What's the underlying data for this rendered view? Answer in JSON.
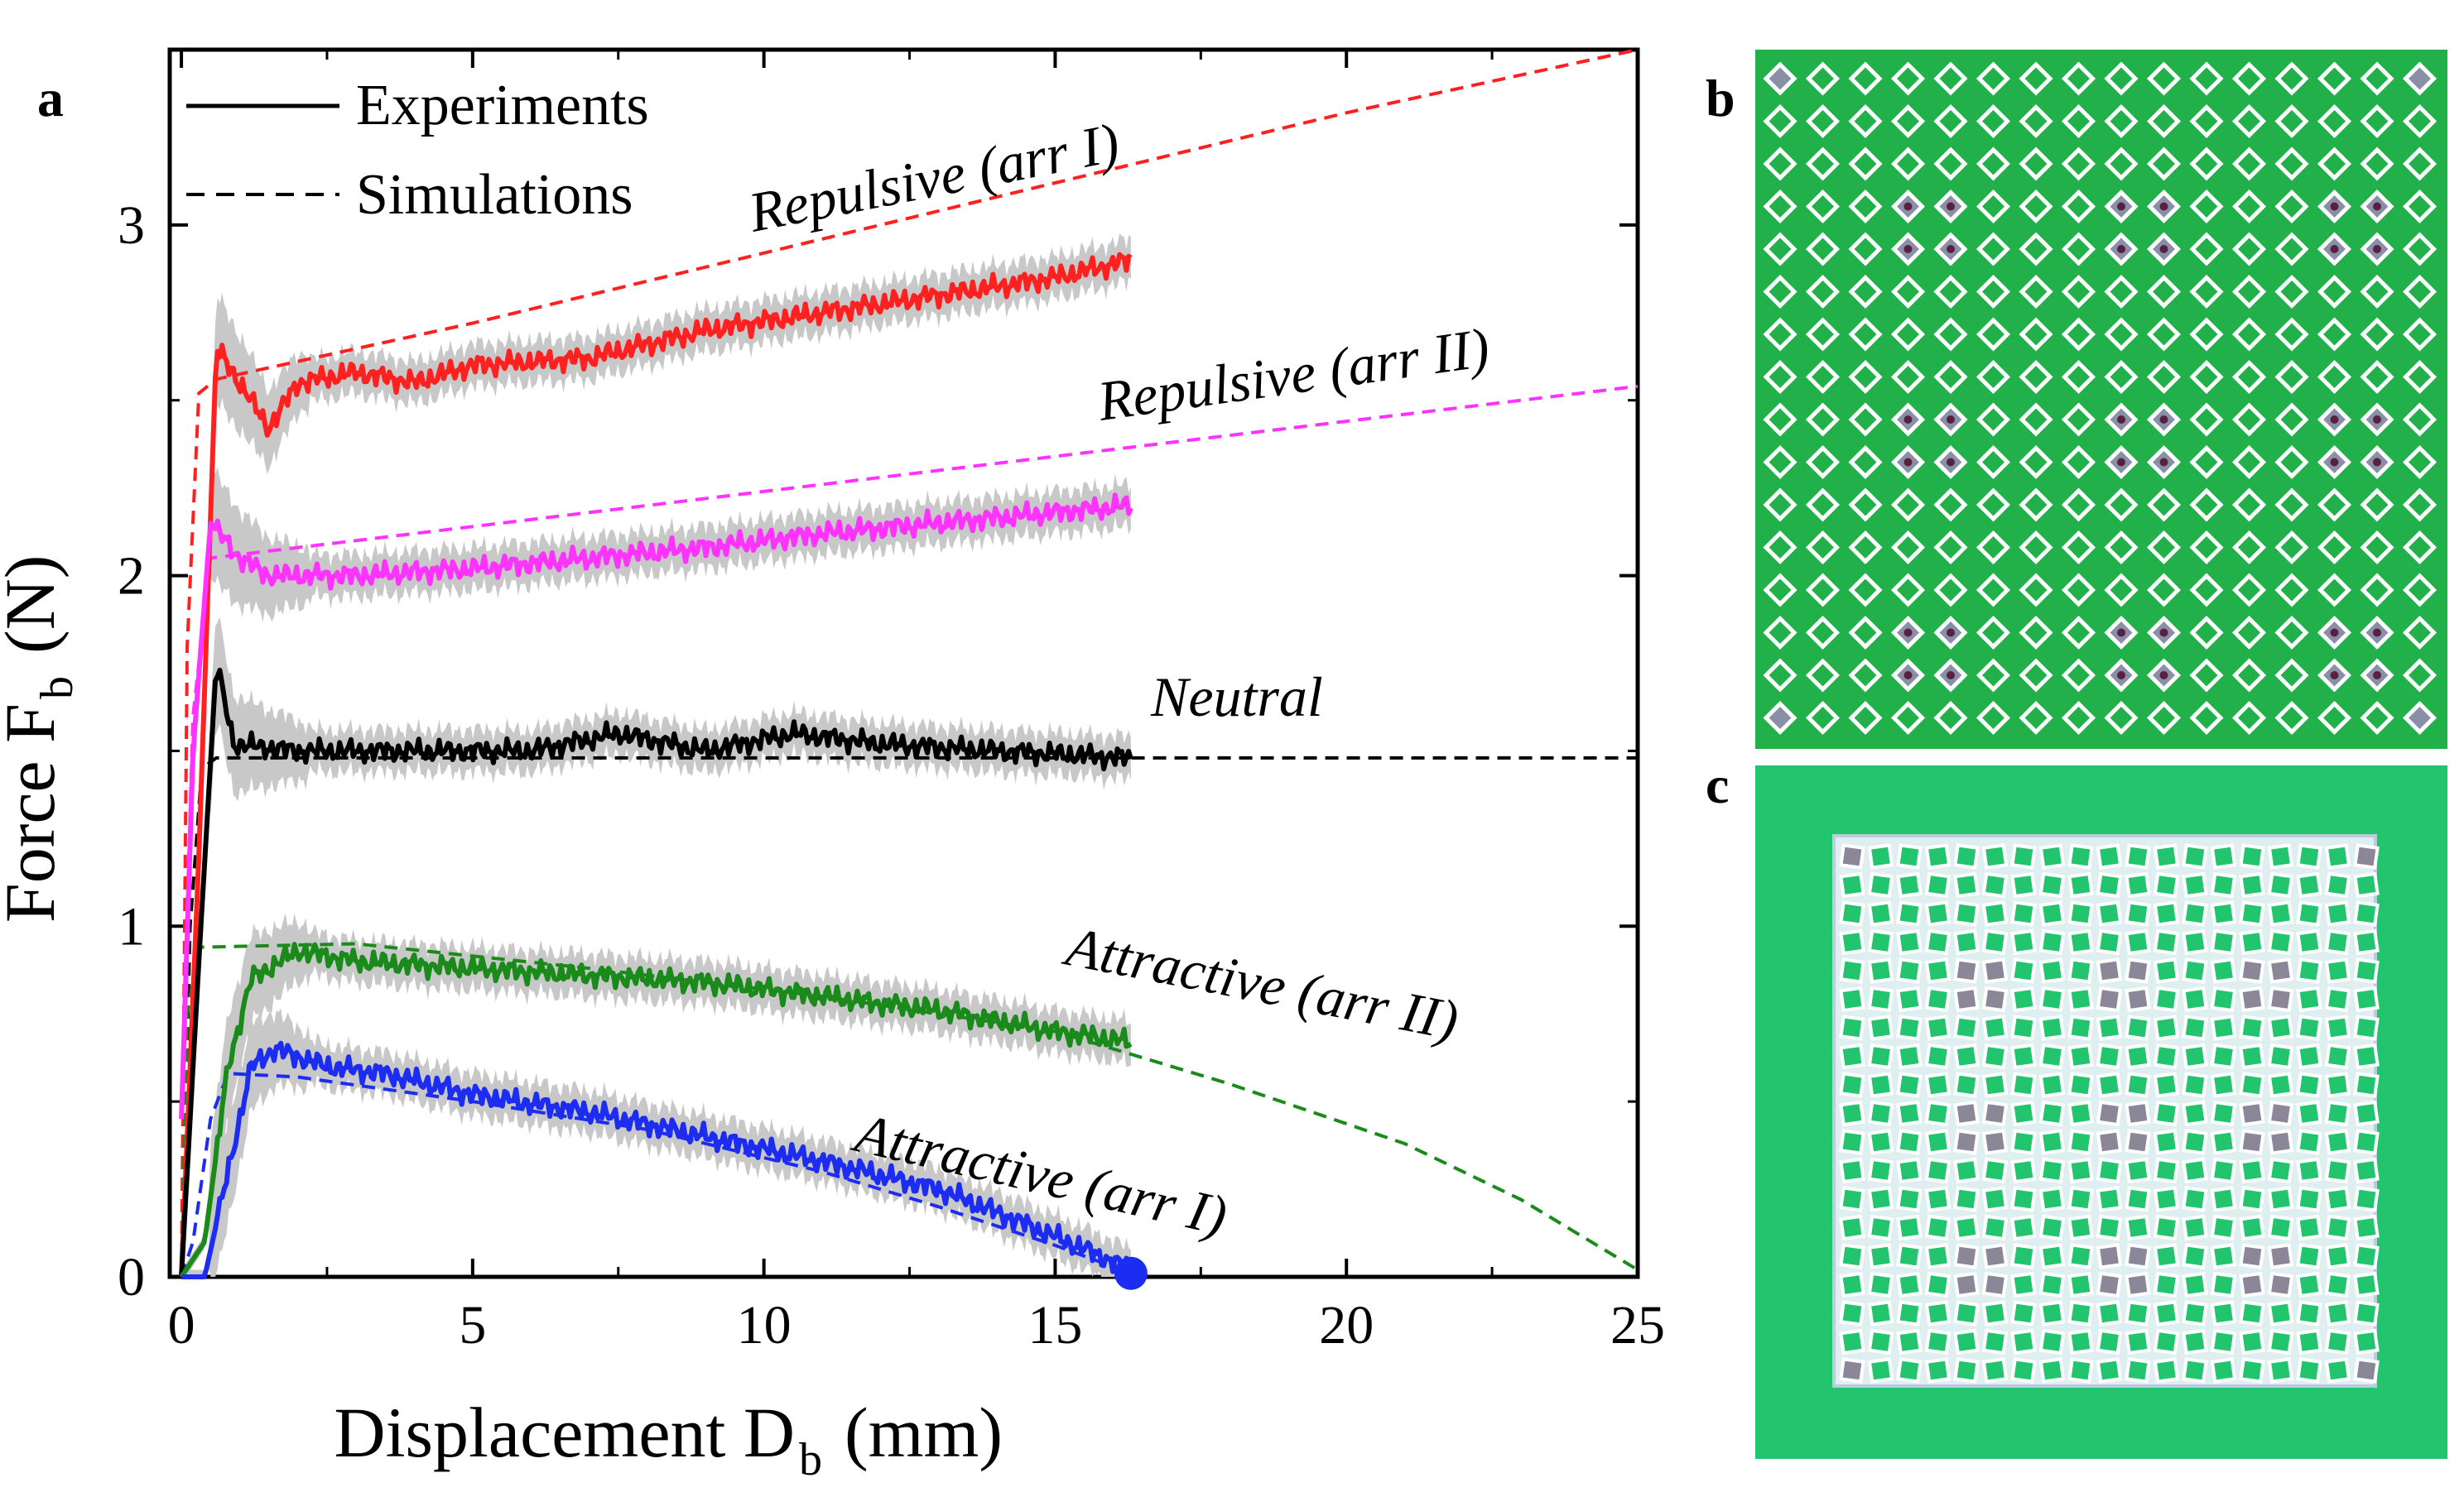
{
  "panels": {
    "a": "a",
    "b": "b",
    "c": "c"
  },
  "legend": {
    "experiments": "Experiments",
    "simulations": "Simulations"
  },
  "colors": {
    "red": "#ff2020",
    "magenta": "#ff33ff",
    "black": "#000000",
    "green": "#1a8a1a",
    "blue": "#1c2cf0",
    "band": "#c8c8c8",
    "board_b": "#22b04a",
    "board_c": "#22c46e"
  },
  "chart_data": {
    "type": "line",
    "xlabel": "Displacement D",
    "xlabel_sub": "b",
    "xlabel_unit": "(mm)",
    "ylabel": "Force F",
    "ylabel_sub": "b",
    "ylabel_unit": "(N)",
    "xlim": [
      -0.2,
      25
    ],
    "ylim": [
      0,
      3.5
    ],
    "xticks": [
      0,
      5,
      10,
      15,
      20,
      25
    ],
    "yticks": [
      0,
      1,
      2,
      3
    ],
    "legend_position": "top-left",
    "series": [
      {
        "name": "Repulsive (arr I)",
        "color": "red",
        "experiment": [
          [
            0,
            0
          ],
          [
            0.3,
            1.2
          ],
          [
            0.6,
            2.65
          ],
          [
            1.0,
            2.55
          ],
          [
            1.5,
            2.42
          ],
          [
            2.0,
            2.55
          ],
          [
            3.0,
            2.58
          ],
          [
            4.0,
            2.55
          ],
          [
            5.0,
            2.6
          ],
          [
            7.0,
            2.62
          ],
          [
            9.0,
            2.7
          ],
          [
            11.0,
            2.75
          ],
          [
            13.0,
            2.8
          ],
          [
            15.0,
            2.85
          ],
          [
            16.3,
            2.9
          ]
        ],
        "simulation": [
          [
            0,
            0
          ],
          [
            0.1,
            1.8
          ],
          [
            0.3,
            2.52
          ],
          [
            0.6,
            2.56
          ],
          [
            5,
            2.72
          ],
          [
            10,
            2.92
          ],
          [
            15,
            3.12
          ],
          [
            20,
            3.32
          ],
          [
            25,
            3.5
          ]
        ]
      },
      {
        "name": "Repulsive (arr II)",
        "color": "magenta",
        "experiment": [
          [
            0,
            0.45
          ],
          [
            0.2,
            1.5
          ],
          [
            0.5,
            2.15
          ],
          [
            1.0,
            2.05
          ],
          [
            1.5,
            2.0
          ],
          [
            3.0,
            2.0
          ],
          [
            5.0,
            2.02
          ],
          [
            7.0,
            2.05
          ],
          [
            9.0,
            2.08
          ],
          [
            11.0,
            2.12
          ],
          [
            13.0,
            2.15
          ],
          [
            15.0,
            2.18
          ],
          [
            16.3,
            2.2
          ]
        ],
        "simulation": [
          [
            0,
            0.5
          ],
          [
            0.2,
            1.6
          ],
          [
            0.5,
            2.05
          ],
          [
            5,
            2.14
          ],
          [
            10,
            2.24
          ],
          [
            15,
            2.34
          ],
          [
            20,
            2.44
          ],
          [
            25,
            2.54
          ]
        ]
      },
      {
        "name": "Neutral",
        "color": "black",
        "experiment": [
          [
            0,
            0
          ],
          [
            0.3,
            0.9
          ],
          [
            0.6,
            1.75
          ],
          [
            0.9,
            1.52
          ],
          [
            2.0,
            1.5
          ],
          [
            4.0,
            1.5
          ],
          [
            6.0,
            1.5
          ],
          [
            7.5,
            1.55
          ],
          [
            9.0,
            1.5
          ],
          [
            10.5,
            1.55
          ],
          [
            12.0,
            1.52
          ],
          [
            14.0,
            1.5
          ],
          [
            16.3,
            1.48
          ]
        ],
        "simulation": [
          [
            0,
            0
          ],
          [
            0.15,
            1.0
          ],
          [
            0.35,
            1.45
          ],
          [
            0.6,
            1.48
          ],
          [
            25,
            1.48
          ]
        ]
      },
      {
        "name": "Attractive (arr II)",
        "color": "green",
        "experiment": [
          [
            0,
            0
          ],
          [
            0.4,
            0.1
          ],
          [
            0.8,
            0.6
          ],
          [
            1.2,
            0.85
          ],
          [
            2.0,
            0.93
          ],
          [
            3.0,
            0.9
          ],
          [
            5.0,
            0.88
          ],
          [
            7.0,
            0.86
          ],
          [
            9.0,
            0.84
          ],
          [
            11.0,
            0.8
          ],
          [
            13.0,
            0.76
          ],
          [
            15.0,
            0.7
          ],
          [
            16.3,
            0.67
          ]
        ],
        "simulation": [
          [
            0,
            0
          ],
          [
            0.1,
            0.75
          ],
          [
            0.3,
            0.94
          ],
          [
            3,
            0.95
          ],
          [
            7,
            0.88
          ],
          [
            11,
            0.8
          ],
          [
            15,
            0.7
          ],
          [
            18,
            0.55
          ],
          [
            21,
            0.38
          ],
          [
            23,
            0.22
          ],
          [
            25,
            0.02
          ]
        ]
      },
      {
        "name": "Attractive (arr I)",
        "color": "blue",
        "experiment": [
          [
            0,
            0
          ],
          [
            0.4,
            0.0
          ],
          [
            0.8,
            0.3
          ],
          [
            1.2,
            0.6
          ],
          [
            1.6,
            0.65
          ],
          [
            2.5,
            0.6
          ],
          [
            3.5,
            0.58
          ],
          [
            5.0,
            0.52
          ],
          [
            7.0,
            0.47
          ],
          [
            9.0,
            0.4
          ],
          [
            11.0,
            0.33
          ],
          [
            13.0,
            0.25
          ],
          [
            14.5,
            0.15
          ],
          [
            15.5,
            0.08
          ],
          [
            16.3,
            0.02
          ]
        ],
        "simulation": [
          [
            0,
            0
          ],
          [
            0.2,
            0.1
          ],
          [
            0.5,
            0.45
          ],
          [
            0.8,
            0.58
          ],
          [
            2,
            0.57
          ],
          [
            5,
            0.5
          ],
          [
            8,
            0.42
          ],
          [
            11,
            0.3
          ],
          [
            13,
            0.2
          ],
          [
            15,
            0.09
          ],
          [
            16.3,
            0.01
          ]
        ],
        "endpoint": [
          16.3,
          0.01
        ]
      }
    ]
  }
}
